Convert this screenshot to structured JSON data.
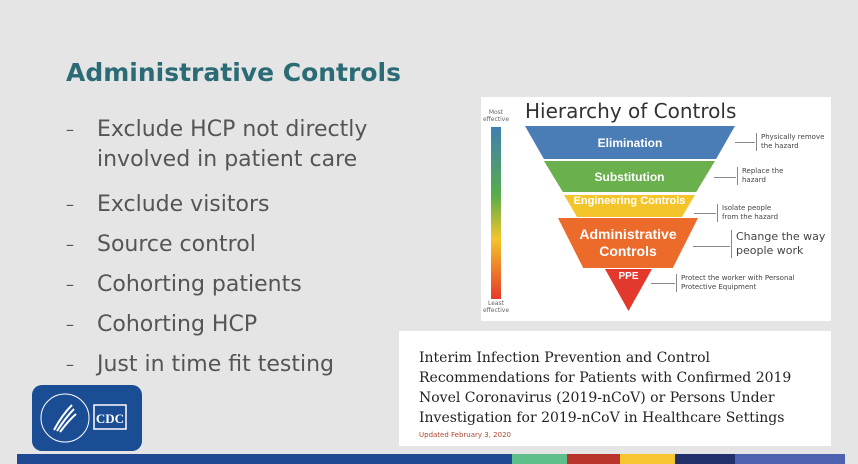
{
  "slide": {
    "title": "Administrative Controls",
    "bullets": [
      "Exclude HCP not directly involved in patient care",
      "Exclude visitors",
      "Source control",
      "Cohorting patients",
      "Cohorting HCP",
      "Just in time fit testing"
    ]
  },
  "hierarchy": {
    "title": "Hierarchy of Controls",
    "most": "Most effective",
    "least": "Least effective",
    "tiers": [
      {
        "label": "Elimination",
        "desc": "Physically remove the hazard",
        "color": "#4a7db5"
      },
      {
        "label": "Substitution",
        "desc": "Replace the hazard",
        "color": "#6ab04c"
      },
      {
        "label": "Engineering Controls",
        "desc": "Isolate people from the hazard",
        "color": "#f3c52b"
      },
      {
        "label": "Administrative Controls",
        "desc": "Change the way people work",
        "color": "#ec6a2a"
      },
      {
        "label": "PPE",
        "desc": "Protect the worker with Personal Protective Equipment",
        "color": "#e2392c"
      }
    ]
  },
  "document": {
    "title": "Interim Infection Prevention and Control Recommendations for Patients with Confirmed 2019 Novel Coronavirus (2019-nCoV) or Persons Under Investigation for 2019-nCoV in Healthcare Settings",
    "updated": "Updated February 3, 2020"
  },
  "logo": {
    "text": "CDC"
  },
  "footer_colors": [
    "#1f4a93",
    "#5fbf8a",
    "#b8342a",
    "#f6c52f",
    "#22306a",
    "#4c62b0"
  ]
}
